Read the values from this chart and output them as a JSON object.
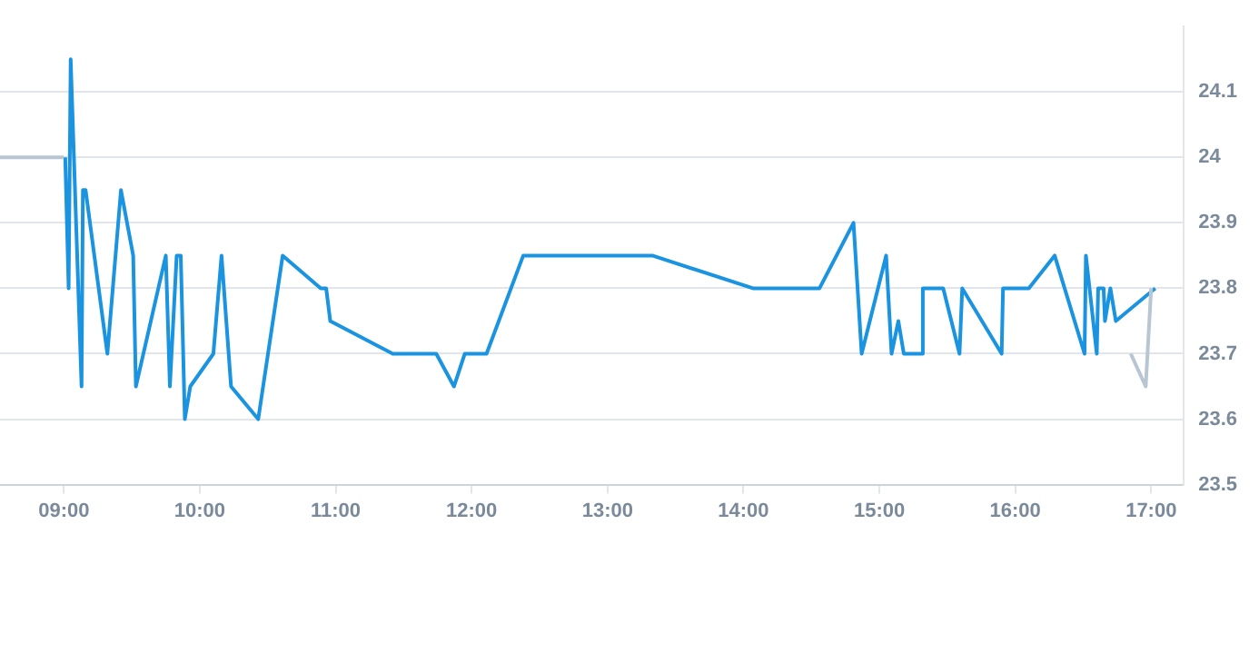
{
  "chart_data": {
    "type": "line",
    "xlim": [
      8.53,
      17.24
    ],
    "ylim": [
      23.5,
      24.2
    ],
    "xticks": [
      {
        "value": 9,
        "label": "09:00"
      },
      {
        "value": 10,
        "label": "10:00"
      },
      {
        "value": 11,
        "label": "11:00"
      },
      {
        "value": 12,
        "label": "12:00"
      },
      {
        "value": 13,
        "label": "13:00"
      },
      {
        "value": 14,
        "label": "14:00"
      },
      {
        "value": 15,
        "label": "15:00"
      },
      {
        "value": 16,
        "label": "16:00"
      },
      {
        "value": 17,
        "label": "17:00"
      }
    ],
    "yticks": [
      23.5,
      23.6,
      23.7,
      23.8,
      23.9,
      24,
      24.1
    ],
    "grid": "y",
    "legend": false,
    "marker": "none",
    "line_style": "solid",
    "series": [
      {
        "color": "#b8c6d3",
        "x": [
          8.53,
          9.0,
          9.01,
          16.85,
          16.96,
          17.0
        ],
        "values": [
          24.0,
          24.0,
          null,
          23.7,
          23.65,
          23.8
        ]
      },
      {
        "color": "#1a93e0",
        "x": [
          9.01,
          9.035,
          9.05,
          9.13,
          9.14,
          9.16,
          9.32,
          9.42,
          9.51,
          9.53,
          9.75,
          9.78,
          9.83,
          9.86,
          9.89,
          9.93,
          10.1,
          10.16,
          10.23,
          10.43,
          10.61,
          10.89,
          10.93,
          10.96,
          11.42,
          11.74,
          11.87,
          11.95,
          12.11,
          12.38,
          13.33,
          14.07,
          14.56,
          14.81,
          14.87,
          15.05,
          15.09,
          15.14,
          15.18,
          15.31,
          15.32,
          15.47,
          15.59,
          15.61,
          15.9,
          15.91,
          16.1,
          16.29,
          16.51,
          16.52,
          16.6,
          16.61,
          16.65,
          16.66,
          16.7,
          16.74,
          17.03
        ],
        "values": [
          24.0,
          23.8,
          24.15,
          23.65,
          23.95,
          23.95,
          23.7,
          23.95,
          23.85,
          23.65,
          23.85,
          23.65,
          23.85,
          23.85,
          23.6,
          23.65,
          23.7,
          23.85,
          23.65,
          23.6,
          23.85,
          23.8,
          23.8,
          23.75,
          23.7,
          23.7,
          23.65,
          23.7,
          23.7,
          23.85,
          23.85,
          23.8,
          23.8,
          23.9,
          23.7,
          23.85,
          23.7,
          23.75,
          23.7,
          23.7,
          23.8,
          23.8,
          23.7,
          23.8,
          23.7,
          23.8,
          23.8,
          23.85,
          23.7,
          23.85,
          23.7,
          23.8,
          23.8,
          23.75,
          23.8,
          23.75,
          23.8
        ]
      }
    ]
  }
}
